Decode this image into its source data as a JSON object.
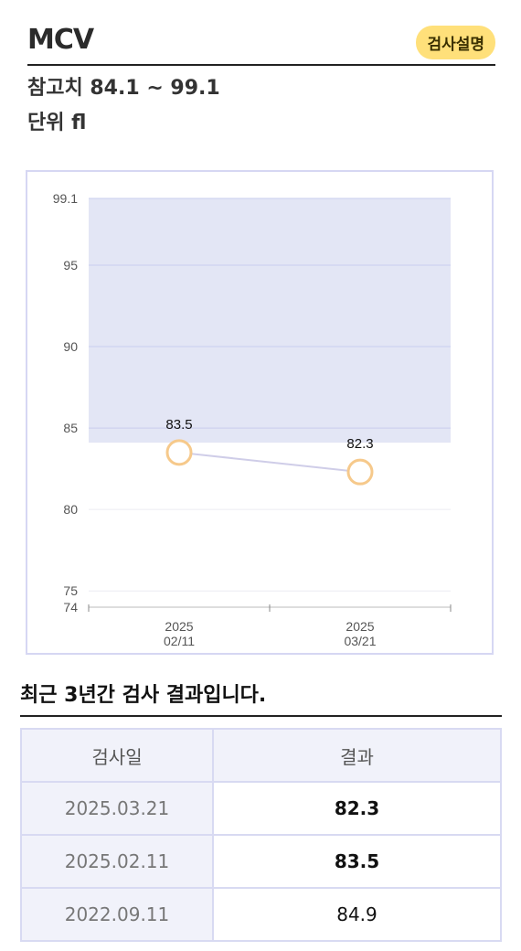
{
  "header": {
    "title": "MCV",
    "help_label": "검사설명"
  },
  "reference_line": "참고치 84.1 ~ 99.1",
  "unit_line": "단위 fl",
  "colors": {
    "band": "#e3e6f5",
    "line": "#cfcde8",
    "point_stroke": "#f6c98b",
    "badge": "#ffe07a"
  },
  "chart_data": {
    "type": "line",
    "ylim": [
      74,
      99.1
    ],
    "y_ticks": [
      "99.1",
      "95",
      "90",
      "85",
      "80",
      "75",
      "74"
    ],
    "reference_band": [
      84.1,
      99.1
    ],
    "x_ticks": [
      {
        "year": "2025",
        "date": "02/11"
      },
      {
        "year": "2025",
        "date": "03/21"
      }
    ],
    "points": [
      {
        "label": "83.5",
        "value": 83.5
      },
      {
        "label": "82.3",
        "value": 82.3
      }
    ]
  },
  "results": {
    "section_title": "최근 3년간 검사 결과입니다.",
    "columns": [
      "검사일",
      "결과"
    ],
    "rows": [
      {
        "date": "2025.03.21",
        "value": "82.3",
        "bold": true
      },
      {
        "date": "2025.02.11",
        "value": "83.5",
        "bold": true
      },
      {
        "date": "2022.09.11",
        "value": "84.9",
        "bold": false
      }
    ]
  }
}
